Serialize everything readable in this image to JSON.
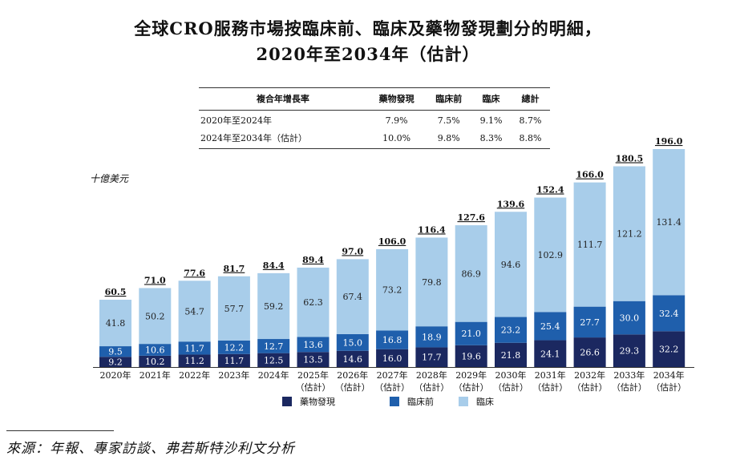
{
  "title_line1": "全球CRO服務市場按臨床前、臨床及藥物發現劃分的明細，",
  "title_line2": "2020年至2034年（估計）",
  "cagr_table": {
    "headers": [
      "複合年增長率",
      "藥物發現",
      "臨床前",
      "臨床",
      "總計"
    ],
    "rows": [
      [
        "2020年至2024年",
        "7.9%",
        "7.5%",
        "9.1%",
        "8.7%"
      ],
      [
        "2024年至2034年（估計）",
        "10.0%",
        "9.8%",
        "8.3%",
        "8.8%"
      ]
    ]
  },
  "unit_label": "十億美元",
  "colors": {
    "drug_discovery": "#1b2860",
    "preclinical": "#1f5fac",
    "clinical": "#a8cdea"
  },
  "chart_data": {
    "type": "bar",
    "stacked": true,
    "categories": [
      "2020年",
      "2021年",
      "2022年",
      "2023年",
      "2024年",
      "2025年\n（估計）",
      "2026年\n（估計）",
      "2027年\n（估計）",
      "2028年\n（估計）",
      "2029年\n（估計）",
      "2030年\n（估計）",
      "2031年\n（估計）",
      "2032年\n（估計）",
      "2033年\n（估計）",
      "2034年\n（估計）"
    ],
    "category_labels": [
      [
        "2020年"
      ],
      [
        "2021年"
      ],
      [
        "2022年"
      ],
      [
        "2023年"
      ],
      [
        "2024年"
      ],
      [
        "2025年",
        "（估計）"
      ],
      [
        "2026年",
        "（估計）"
      ],
      [
        "2027年",
        "（估計）"
      ],
      [
        "2028年",
        "（估計）"
      ],
      [
        "2029年",
        "（估計）"
      ],
      [
        "2030年",
        "（估計）"
      ],
      [
        "2031年",
        "（估計）"
      ],
      [
        "2032年",
        "（估計）"
      ],
      [
        "2033年",
        "（估計）"
      ],
      [
        "2034年",
        "（估計）"
      ]
    ],
    "series": [
      {
        "name": "藥物發現",
        "values": [
          9.2,
          10.2,
          11.2,
          11.7,
          12.5,
          13.5,
          14.6,
          16.0,
          17.7,
          19.6,
          21.8,
          24.1,
          26.6,
          29.3,
          32.2
        ]
      },
      {
        "name": "臨床前",
        "values": [
          9.5,
          10.6,
          11.7,
          12.2,
          12.7,
          13.6,
          15.0,
          16.8,
          18.9,
          21.0,
          23.2,
          25.4,
          27.7,
          30.0,
          32.4
        ]
      },
      {
        "name": "臨床",
        "values": [
          41.8,
          50.2,
          54.7,
          57.7,
          59.2,
          62.3,
          67.4,
          73.2,
          79.8,
          86.9,
          94.6,
          102.9,
          111.7,
          121.2,
          131.4
        ]
      }
    ],
    "totals": [
      "60.5",
      "71.0",
      "77.6",
      "81.7",
      "84.4",
      "89.4",
      "97.0",
      "106.0",
      "116.4",
      "127.6",
      "139.6",
      "152.4",
      "166.0",
      "180.5",
      "196.0"
    ],
    "ylim": [
      0,
      196
    ],
    "legend": [
      "藥物發現",
      "臨床前",
      "臨床"
    ]
  },
  "source": "來源：年報、專家訪談、弗若斯特沙利文分析"
}
